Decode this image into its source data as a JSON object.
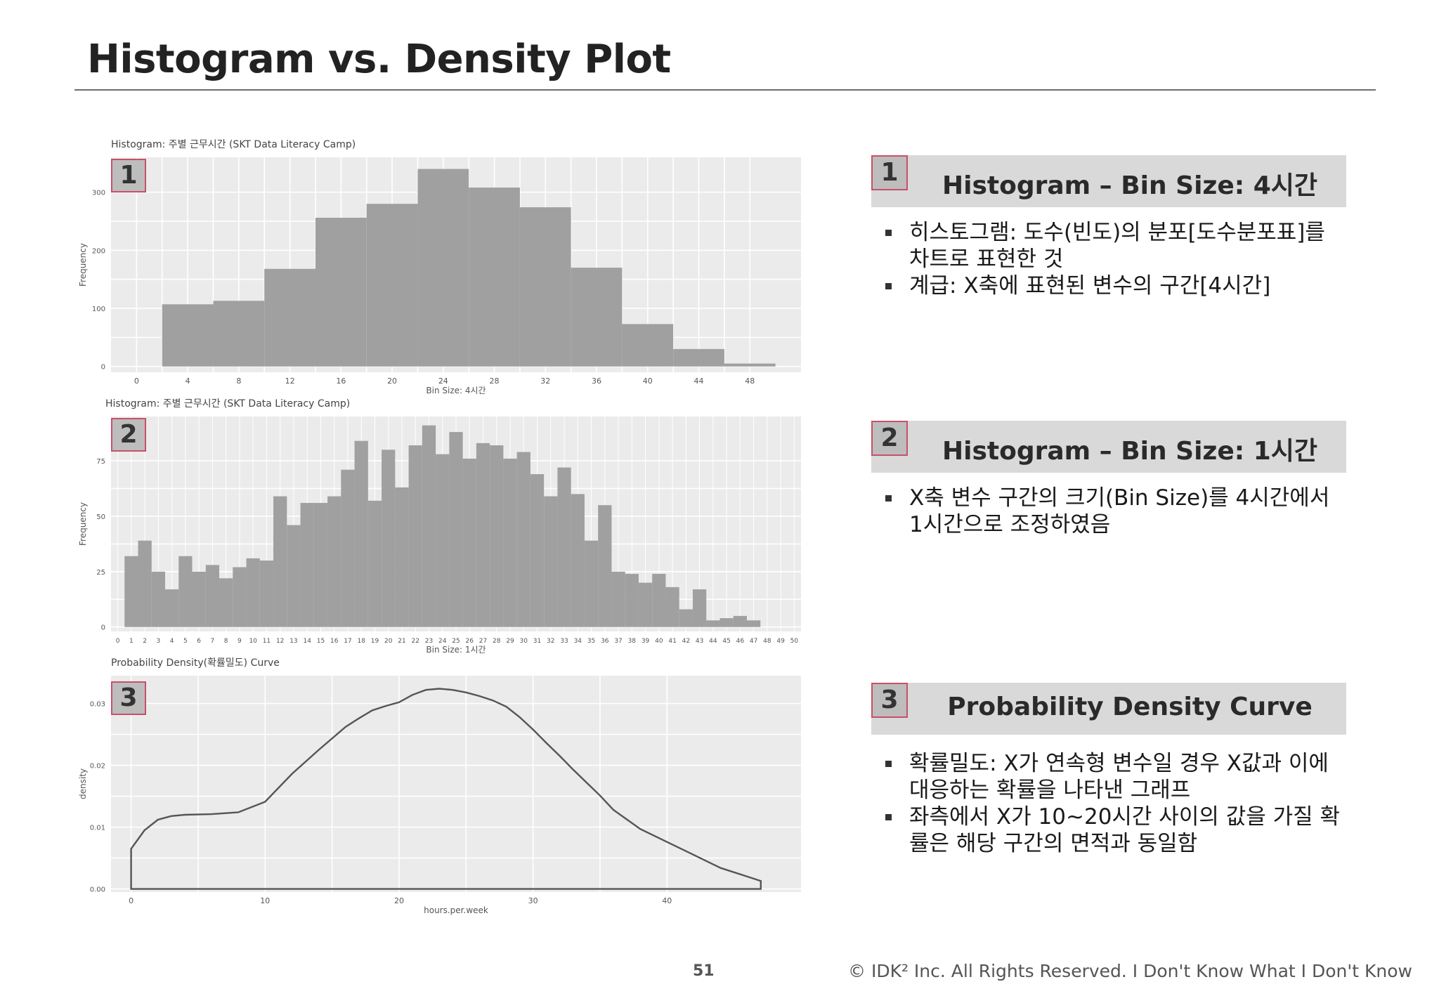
{
  "page": {
    "title": "Histogram vs. Density Plot",
    "page_number": "51",
    "copyright": "© IDK² Inc. All Rights Reserved.  I Don't Know What I Don't Know"
  },
  "cards": [
    {
      "num": "1",
      "heading": "Histogram – Bin Size: 4시간",
      "bullets": [
        "히스토그램: 도수(빈도)의 분포[도수분포표]를 차트로 표현한 것",
        "계급: X축에 표현된 변수의 구간[4시간]"
      ]
    },
    {
      "num": "2",
      "heading": "Histogram – Bin Size: 1시간",
      "bullets": [
        "X축 변수 구간의 크기(Bin Size)를 4시간에서 1시간으로 조정하였음"
      ]
    },
    {
      "num": "3",
      "heading": "Probability Density Curve",
      "bullets": [
        "확률밀도: X가 연속형 변수일 경우 X값과 이에 대응하는 확률을 나타낸 그래프",
        "좌측에서 X가 10~20시간 사이의 값을 가질 확률은 해당 구간의 면적과 동일함"
      ]
    }
  ],
  "chart_data": [
    {
      "type": "bar",
      "badge": "1",
      "title": "Histogram: 주별 근무시간 (SKT Data Literacy Camp)",
      "xlabel": "Bin Size: 4시간",
      "ylabel": "Frequency",
      "xlim": [
        -2,
        52
      ],
      "ylim": [
        -10,
        360
      ],
      "xticks": [
        0,
        4,
        8,
        12,
        16,
        20,
        24,
        28,
        32,
        36,
        40,
        44,
        48
      ],
      "yticks": [
        0,
        100,
        200,
        300
      ],
      "bin_width": 4,
      "bin_starts": [
        2,
        6,
        10,
        14,
        18,
        22,
        26,
        30,
        34,
        38,
        42,
        46
      ],
      "values": [
        107,
        113,
        168,
        256,
        280,
        340,
        308,
        274,
        170,
        73,
        30,
        5
      ]
    },
    {
      "type": "bar",
      "badge": "2",
      "title": "Histogram: 주별 근무시간 (SKT Data Literacy Camp)",
      "xlabel": "Bin Size: 1시간",
      "ylabel": "Frequency",
      "xlim": [
        -0.5,
        50.5
      ],
      "ylim": [
        -2,
        95
      ],
      "xticks": [
        0,
        1,
        2,
        3,
        4,
        5,
        6,
        7,
        8,
        9,
        10,
        11,
        12,
        13,
        14,
        15,
        16,
        17,
        18,
        19,
        20,
        21,
        22,
        23,
        24,
        25,
        26,
        27,
        28,
        29,
        30,
        31,
        32,
        33,
        34,
        35,
        36,
        37,
        38,
        39,
        40,
        41,
        42,
        43,
        44,
        45,
        46,
        47,
        48,
        49,
        50
      ],
      "yticks": [
        0,
        25,
        50,
        75
      ],
      "bin_width": 1,
      "bin_starts": [
        0.5,
        1.5,
        2.5,
        3.5,
        4.5,
        5.5,
        6.5,
        7.5,
        8.5,
        9.5,
        10.5,
        11.5,
        12.5,
        13.5,
        14.5,
        15.5,
        16.5,
        17.5,
        18.5,
        19.5,
        20.5,
        21.5,
        22.5,
        23.5,
        24.5,
        25.5,
        26.5,
        27.5,
        28.5,
        29.5,
        30.5,
        31.5,
        32.5,
        33.5,
        34.5,
        35.5,
        36.5,
        37.5,
        38.5,
        39.5,
        40.5,
        41.5,
        42.5,
        43.5,
        44.5,
        45.5,
        46.5
      ],
      "values": [
        32,
        39,
        25,
        17,
        32,
        25,
        28,
        22,
        27,
        31,
        30,
        59,
        46,
        56,
        56,
        59,
        71,
        84,
        57,
        80,
        63,
        82,
        91,
        78,
        88,
        76,
        83,
        82,
        76,
        79,
        69,
        59,
        72,
        60,
        39,
        55,
        25,
        24,
        20,
        24,
        18,
        8,
        17,
        3,
        4,
        5,
        3
      ]
    },
    {
      "type": "line",
      "badge": "3",
      "title": "Probability Density(확률밀도) Curve",
      "xlabel": "hours.per.week",
      "ylabel": "density",
      "xlim": [
        -1.5,
        50
      ],
      "ylim": [
        -0.0005,
        0.0345
      ],
      "xticks": [
        0,
        10,
        20,
        30,
        40
      ],
      "yticks": [
        0.0,
        0.01,
        0.02,
        0.03
      ],
      "yticklabels": [
        "0.00",
        "0.01",
        "0.02",
        "0.03"
      ],
      "x": [
        0,
        1,
        2,
        3,
        4,
        6,
        8,
        10,
        12,
        14,
        16,
        17,
        18,
        19,
        20,
        21,
        22,
        23,
        24,
        25,
        26,
        27,
        28,
        29,
        30,
        31,
        32,
        33,
        34,
        35,
        36,
        38,
        40,
        42,
        44,
        46,
        47
      ],
      "y": [
        0.0065,
        0.0095,
        0.0112,
        0.0118,
        0.012,
        0.0121,
        0.0124,
        0.0141,
        0.0186,
        0.0225,
        0.0262,
        0.0276,
        0.0289,
        0.0296,
        0.0302,
        0.0314,
        0.0322,
        0.0324,
        0.0322,
        0.0318,
        0.0312,
        0.0305,
        0.0295,
        0.0278,
        0.0258,
        0.0236,
        0.0215,
        0.0193,
        0.0172,
        0.0151,
        0.0128,
        0.0097,
        0.0076,
        0.0055,
        0.0034,
        0.002,
        0.0013
      ]
    }
  ]
}
